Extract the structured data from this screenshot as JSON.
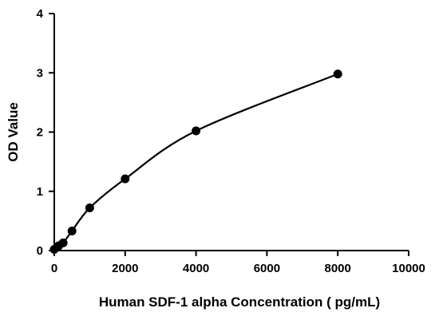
{
  "chart_data": {
    "type": "scatter",
    "title": "",
    "xlabel": "Human SDF-1 alpha Concentration ( pg/mL)",
    "ylabel": "OD Value",
    "xlim": [
      0,
      10000
    ],
    "ylim": [
      0,
      4
    ],
    "xticks": [
      "0",
      "2000",
      "4000",
      "6000",
      "8000",
      "10000"
    ],
    "yticks": [
      "0",
      "1",
      "2",
      "3",
      "4"
    ],
    "grid": false,
    "legend": "none",
    "points": [
      {
        "x": 0,
        "y": 0.02
      },
      {
        "x": 125,
        "y": 0.08
      },
      {
        "x": 250,
        "y": 0.13
      },
      {
        "x": 500,
        "y": 0.33
      },
      {
        "x": 1000,
        "y": 0.72
      },
      {
        "x": 2000,
        "y": 1.21
      },
      {
        "x": 4000,
        "y": 2.02
      },
      {
        "x": 8000,
        "y": 2.98
      }
    ],
    "fit": "smooth standard curve through points",
    "colors": {
      "marker": "#000000",
      "line": "#000000",
      "axis": "#000000"
    }
  }
}
